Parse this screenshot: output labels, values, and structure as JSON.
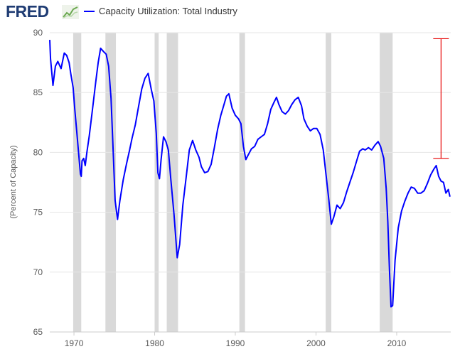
{
  "header": {
    "logo_text": "FRED",
    "logo_icon": "chart-line-icon",
    "legend_label": "Capacity Utilization: Total Industry"
  },
  "chart_data": {
    "type": "line",
    "title": "",
    "xlabel": "",
    "ylabel": "(Percent of Capacity)",
    "xlim": [
      1967.0,
      2016.7
    ],
    "ylim": [
      65,
      90
    ],
    "y_ticks": [
      65,
      70,
      75,
      80,
      85,
      90
    ],
    "x_ticks": [
      1970,
      1980,
      1990,
      2000,
      2010
    ],
    "grid": "horizontal",
    "legend": "top-left",
    "colors": {
      "series": "#0000ff",
      "recession": "#d9d9d9",
      "annotation": "#e60000",
      "grid": "#e6e6e6"
    },
    "recessions": [
      [
        1969.9,
        1970.9
      ],
      [
        1973.9,
        1975.2
      ],
      [
        1980.0,
        1980.5
      ],
      [
        1981.5,
        1982.9
      ],
      [
        1990.5,
        1991.2
      ],
      [
        2001.2,
        2001.9
      ],
      [
        2007.9,
        2009.5
      ]
    ],
    "annotation": {
      "type": "range-bar",
      "x": 2015.5,
      "y_low": 79.5,
      "y_high": 89.5
    },
    "series": [
      {
        "name": "Capacity Utilization: Total Industry",
        "x": [
          1967.0,
          1967.1,
          1967.4,
          1967.7,
          1968.0,
          1968.4,
          1968.8,
          1969.1,
          1969.4,
          1969.6,
          1969.9,
          1970.1,
          1970.4,
          1970.8,
          1970.9,
          1971.0,
          1971.2,
          1971.4,
          1971.6,
          1971.9,
          1972.3,
          1972.7,
          1973.0,
          1973.3,
          1973.7,
          1974.0,
          1974.3,
          1974.6,
          1974.9,
          1975.1,
          1975.4,
          1975.7,
          1976.1,
          1976.5,
          1976.9,
          1977.2,
          1977.6,
          1978.0,
          1978.4,
          1978.8,
          1979.2,
          1979.6,
          1979.9,
          1980.2,
          1980.4,
          1980.6,
          1980.8,
          1981.1,
          1981.4,
          1981.7,
          1982.0,
          1982.4,
          1982.8,
          1983.1,
          1983.5,
          1983.9,
          1984.3,
          1984.7,
          1985.1,
          1985.5,
          1985.8,
          1986.2,
          1986.6,
          1987.0,
          1987.4,
          1987.8,
          1988.2,
          1988.6,
          1988.9,
          1989.2,
          1989.6,
          1990.0,
          1990.4,
          1990.7,
          1991.0,
          1991.3,
          1991.6,
          1992.0,
          1992.4,
          1992.8,
          1993.2,
          1993.6,
          1994.0,
          1994.4,
          1994.8,
          1995.1,
          1995.4,
          1995.8,
          1996.2,
          1996.6,
          1997.0,
          1997.4,
          1997.8,
          1998.2,
          1998.5,
          1998.9,
          1999.3,
          1999.7,
          2000.1,
          2000.5,
          2000.9,
          2001.3,
          2001.6,
          2001.9,
          2002.2,
          2002.6,
          2003.0,
          2003.4,
          2003.8,
          2004.2,
          2004.6,
          2005.0,
          2005.4,
          2005.8,
          2006.1,
          2006.5,
          2006.9,
          2007.3,
          2007.7,
          2008.0,
          2008.4,
          2008.7,
          2008.9,
          2009.1,
          2009.3,
          2009.5,
          2009.8,
          2010.2,
          2010.6,
          2011.0,
          2011.4,
          2011.8,
          2012.2,
          2012.6,
          2013.0,
          2013.4,
          2013.8,
          2014.2,
          2014.6,
          2014.9,
          2015.2,
          2015.5,
          2015.8,
          2016.1,
          2016.4,
          2016.6
        ],
        "values": [
          89.4,
          87.8,
          85.6,
          87.2,
          87.6,
          87.0,
          88.3,
          88.1,
          87.5,
          86.6,
          85.4,
          83.6,
          81.3,
          78.2,
          78.0,
          79.3,
          79.5,
          78.9,
          80.0,
          81.4,
          83.6,
          85.9,
          87.5,
          88.7,
          88.4,
          88.2,
          87.2,
          84.5,
          79.5,
          76.0,
          74.4,
          76.0,
          77.7,
          79.0,
          80.2,
          81.2,
          82.3,
          83.8,
          85.3,
          86.2,
          86.6,
          85.2,
          84.3,
          81.6,
          78.3,
          77.8,
          79.4,
          81.3,
          80.9,
          80.2,
          77.8,
          74.8,
          71.2,
          72.3,
          75.6,
          77.9,
          80.2,
          81.0,
          80.2,
          79.6,
          78.8,
          78.3,
          78.4,
          79.0,
          80.4,
          81.9,
          83.1,
          84.0,
          84.7,
          84.9,
          83.7,
          83.1,
          82.8,
          82.4,
          80.5,
          79.4,
          79.8,
          80.3,
          80.5,
          81.1,
          81.3,
          81.5,
          82.4,
          83.6,
          84.2,
          84.6,
          84.0,
          83.4,
          83.2,
          83.5,
          84.0,
          84.4,
          84.6,
          83.9,
          82.8,
          82.2,
          81.8,
          82.0,
          82.0,
          81.5,
          80.2,
          77.8,
          76.0,
          74.0,
          74.6,
          75.6,
          75.3,
          75.8,
          76.7,
          77.5,
          78.3,
          79.2,
          80.1,
          80.3,
          80.2,
          80.4,
          80.2,
          80.6,
          80.9,
          80.5,
          79.5,
          77.0,
          74.2,
          70.2,
          67.1,
          67.2,
          71.0,
          73.7,
          75.1,
          75.9,
          76.6,
          77.1,
          77.0,
          76.6,
          76.6,
          76.8,
          77.4,
          78.1,
          78.6,
          78.9,
          78.0,
          77.6,
          77.5,
          76.6,
          76.9,
          76.3
        ]
      }
    ]
  }
}
